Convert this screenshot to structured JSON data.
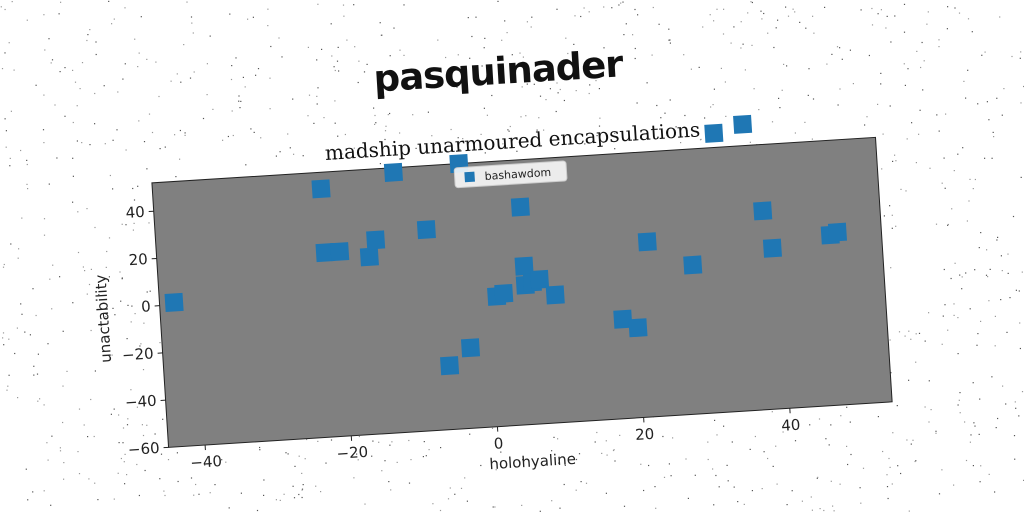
{
  "header_text": "pasquinader",
  "chart_data": {
    "type": "scatter",
    "title": "madship unarmoured encapsulations",
    "xlabel": "holohyaline",
    "ylabel": "unactability",
    "xlim": [
      -45,
      54
    ],
    "ylim": [
      -60,
      52
    ],
    "xticks": [
      -40,
      -20,
      0,
      20,
      40
    ],
    "yticks": [
      -60,
      -40,
      -20,
      0,
      20,
      40
    ],
    "grid": false,
    "legend_position": "top-center",
    "plot_background": "#808080",
    "series": [
      {
        "name": "bashawdom",
        "color": "#1f77b4",
        "marker": "square",
        "x": [
          -43,
          -22,
          -22,
          -20,
          -16,
          -15,
          -12,
          -8,
          -3,
          -3,
          -6,
          1,
          2,
          5,
          5,
          5,
          6,
          7,
          9,
          18,
          20,
          22,
          28,
          32,
          36,
          38,
          39,
          47,
          48
        ],
        "y": [
          1,
          45,
          18,
          18,
          15,
          22,
          50,
          25,
          52,
          -26,
          -33,
          -5,
          -4,
          32,
          -1,
          7,
          0,
          1,
          -6,
          -18,
          -22,
          14,
          3,
          58,
          61,
          24,
          8,
          12,
          13
        ]
      }
    ]
  }
}
